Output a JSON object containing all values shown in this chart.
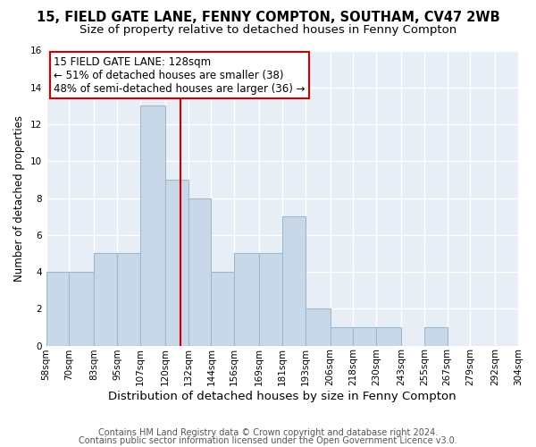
{
  "title1": "15, FIELD GATE LANE, FENNY COMPTON, SOUTHAM, CV47 2WB",
  "title2": "Size of property relative to detached houses in Fenny Compton",
  "xlabel": "Distribution of detached houses by size in Fenny Compton",
  "ylabel": "Number of detached properties",
  "footer1": "Contains HM Land Registry data © Crown copyright and database right 2024.",
  "footer2": "Contains public sector information licensed under the Open Government Licence v3.0.",
  "bin_edges": [
    58,
    70,
    83,
    95,
    107,
    120,
    132,
    144,
    156,
    169,
    181,
    193,
    206,
    218,
    230,
    243,
    255,
    267,
    279,
    292,
    304
  ],
  "bin_labels": [
    "58sqm",
    "70sqm",
    "83sqm",
    "95sqm",
    "107sqm",
    "120sqm",
    "132sqm",
    "144sqm",
    "156sqm",
    "169sqm",
    "181sqm",
    "193sqm",
    "206sqm",
    "218sqm",
    "230sqm",
    "243sqm",
    "255sqm",
    "267sqm",
    "279sqm",
    "292sqm",
    "304sqm"
  ],
  "counts": [
    4,
    4,
    5,
    5,
    13,
    9,
    8,
    4,
    5,
    5,
    7,
    2,
    1,
    1,
    1,
    0,
    1,
    0,
    0,
    0
  ],
  "bar_color": "#c8d8e8",
  "bar_edge_color": "#a0b8cc",
  "vline_x": 128,
  "vline_color": "#cc0000",
  "annotation_title": "15 FIELD GATE LANE: 128sqm",
  "annotation_line1": "← 51% of detached houses are smaller (38)",
  "annotation_line2": "48% of semi-detached houses are larger (36) →",
  "annotation_box_color": "#ffffff",
  "annotation_box_edge": "#cc0000",
  "ylim": [
    0,
    16
  ],
  "yticks": [
    0,
    2,
    4,
    6,
    8,
    10,
    12,
    14,
    16
  ],
  "plot_bg_color": "#e8eef5",
  "background_color": "#ffffff",
  "title1_fontsize": 10.5,
  "title2_fontsize": 9.5,
  "xlabel_fontsize": 9.5,
  "ylabel_fontsize": 8.5,
  "tick_fontsize": 7.5,
  "annotation_fontsize": 8.5,
  "footer_fontsize": 7
}
